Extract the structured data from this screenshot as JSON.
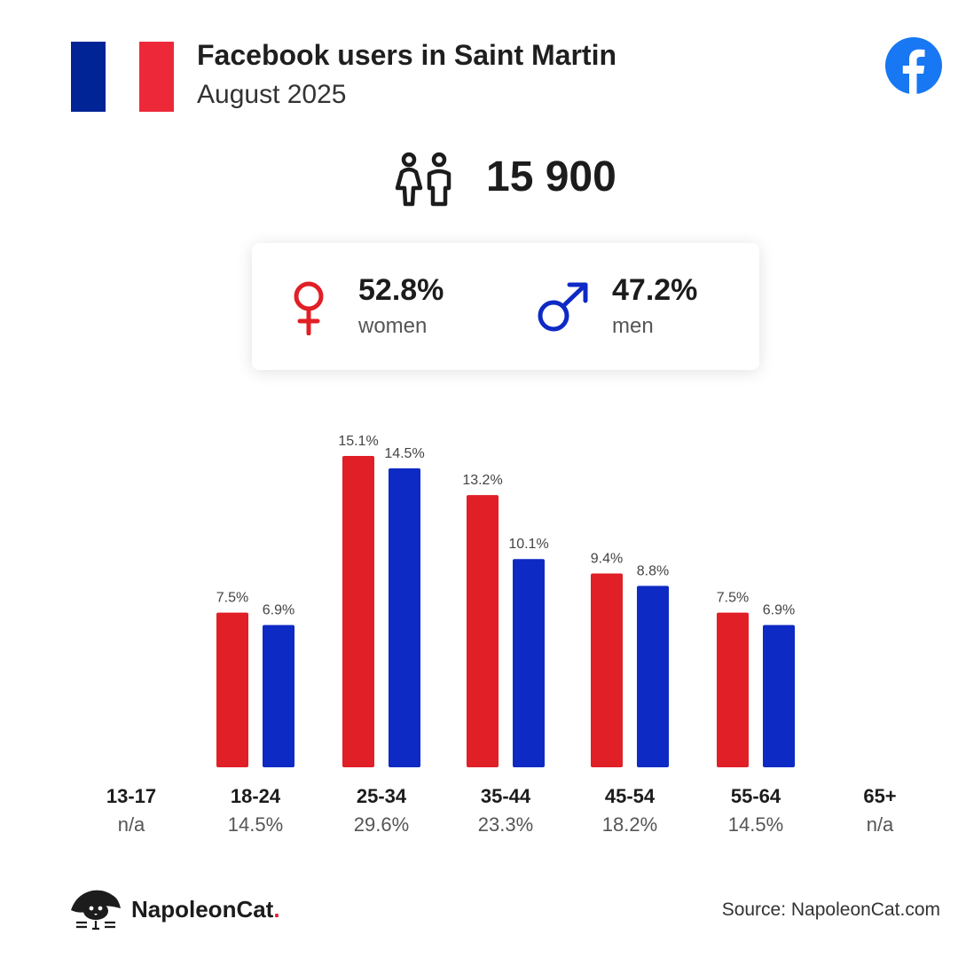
{
  "header": {
    "title": "Facebook users in Saint Martin",
    "subtitle": "August 2025"
  },
  "flag": {
    "colors": [
      "#002395",
      "#ffffff",
      "#ed2939"
    ]
  },
  "users": {
    "total": "15 900",
    "icon": "users-icon"
  },
  "gender": {
    "women": {
      "pct": "52.8%",
      "label": "women",
      "icon": "female-icon"
    },
    "men": {
      "pct": "47.2%",
      "label": "men",
      "icon": "male-icon"
    }
  },
  "colors": {
    "women": "#e01f26",
    "men": "#0e2ac4",
    "facebook": "#1877f2"
  },
  "chart_data": {
    "type": "bar",
    "categories": [
      "13-17",
      "18-24",
      "25-34",
      "35-44",
      "45-54",
      "55-64",
      "65+"
    ],
    "totals": [
      "n/a",
      "14.5%",
      "29.6%",
      "23.3%",
      "18.2%",
      "14.5%",
      "n/a"
    ],
    "series": [
      {
        "name": "women",
        "values": [
          null,
          7.5,
          15.1,
          13.2,
          9.4,
          7.5,
          null
        ],
        "labels": [
          "",
          "7.5%",
          "15.1%",
          "13.2%",
          "9.4%",
          "7.5%",
          ""
        ]
      },
      {
        "name": "men",
        "values": [
          null,
          6.9,
          14.5,
          10.1,
          8.8,
          6.9,
          null
        ],
        "labels": [
          "",
          "6.9%",
          "14.5%",
          "10.1%",
          "8.8%",
          "6.9%",
          ""
        ]
      }
    ],
    "ylim": [
      0,
      15.1
    ]
  },
  "footer": {
    "brand": "NapoleonCat",
    "brand_dot": ".",
    "source": "Source: NapoleonCat.com"
  }
}
